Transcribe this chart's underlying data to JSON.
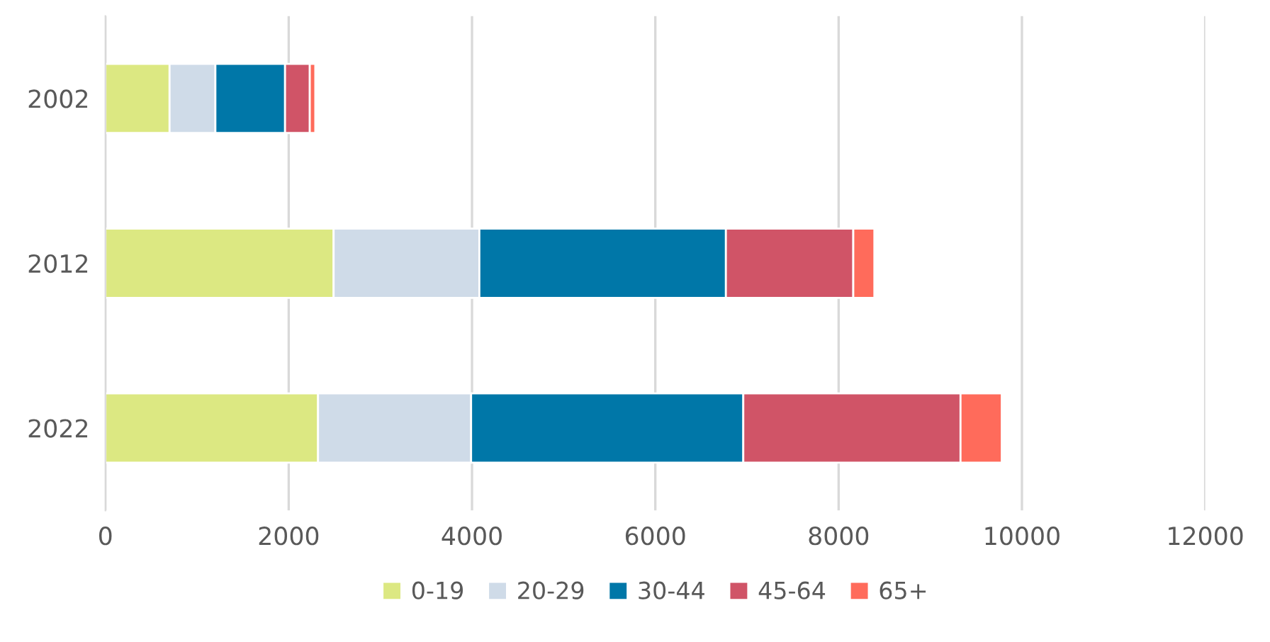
{
  "chart_data": {
    "type": "bar",
    "orientation": "horizontal",
    "stacked": true,
    "categories": [
      "2002",
      "2012",
      "2022"
    ],
    "series": [
      {
        "name": "0-19",
        "color": "#dce882",
        "values": [
          700,
          2490,
          2320
        ]
      },
      {
        "name": "20-29",
        "color": "#cfdbe8",
        "values": [
          500,
          1590,
          1670
        ]
      },
      {
        "name": "30-44",
        "color": "#0077a8",
        "values": [
          760,
          2690,
          2970
        ]
      },
      {
        "name": "45-64",
        "color": "#d05467",
        "values": [
          270,
          1390,
          2370
        ]
      },
      {
        "name": "65+",
        "color": "#ff6b5b",
        "values": [
          60,
          230,
          450
        ]
      }
    ],
    "xlim": [
      0,
      12000
    ],
    "xticks": [
      0,
      2000,
      4000,
      6000,
      8000,
      10000,
      12000
    ],
    "grid": "x",
    "legend": "bottom"
  }
}
